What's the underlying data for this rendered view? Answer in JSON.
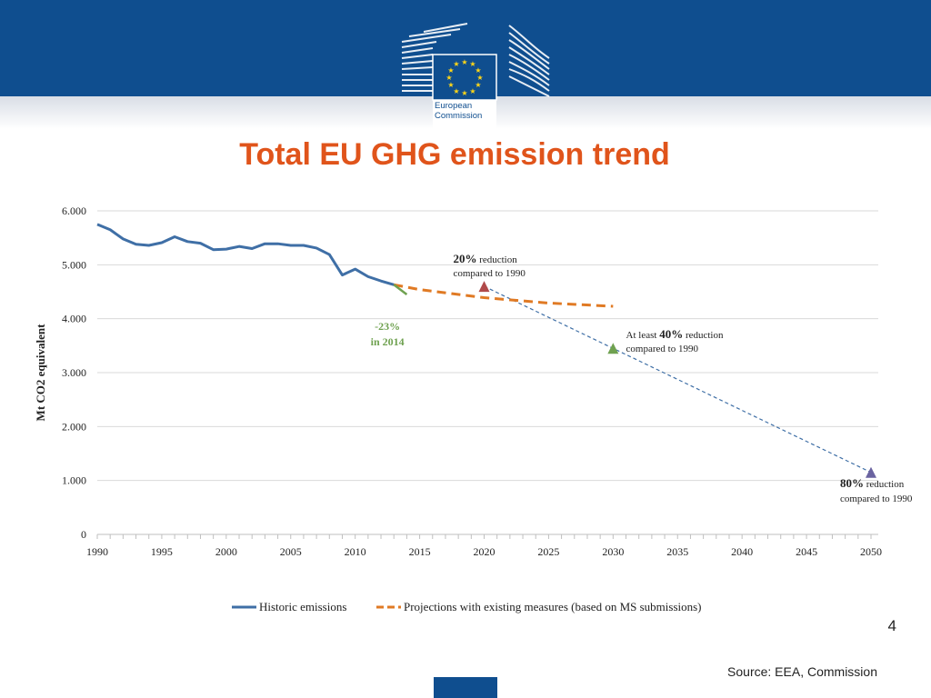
{
  "header": {
    "logo_line1": "European",
    "logo_line2": "Commission",
    "title": "Total EU GHG emission trend"
  },
  "footer": {
    "page_number": "4",
    "source": "Source: EEA, Commission"
  },
  "colors": {
    "banner": "#0f4e8f",
    "title": "#e0541b",
    "historic": "#3f6fa6",
    "projection": "#e07a24",
    "target_line": "#3f6fa6",
    "marker_2020": "#b04a4a",
    "marker_2030": "#6fa150",
    "marker_2050": "#6a63a0",
    "trend_2014": "#6fa150"
  },
  "chart_data": {
    "type": "line",
    "ylabel": "Mt CO2 equivalent",
    "ylim": [
      0,
      6000
    ],
    "xlim": [
      1990,
      2050
    ],
    "y_ticks": [
      {
        "value": 0,
        "label": "0"
      },
      {
        "value": 1000,
        "label": "1.000"
      },
      {
        "value": 2000,
        "label": "2.000"
      },
      {
        "value": 3000,
        "label": "3.000"
      },
      {
        "value": 4000,
        "label": "4.000"
      },
      {
        "value": 5000,
        "label": "5.000"
      },
      {
        "value": 6000,
        "label": "6.000"
      }
    ],
    "x_ticks": [
      1990,
      1995,
      2000,
      2005,
      2010,
      2015,
      2020,
      2025,
      2030,
      2035,
      2040,
      2045,
      2050
    ],
    "grid": true,
    "legend_position": "bottom",
    "series": [
      {
        "name": "Historic emissions",
        "style": "solid",
        "x": [
          1990,
          1991,
          1992,
          1993,
          1994,
          1995,
          1996,
          1997,
          1998,
          1999,
          2000,
          2001,
          2002,
          2003,
          2004,
          2005,
          2006,
          2007,
          2008,
          2009,
          2010,
          2011,
          2012,
          2013
        ],
        "y": [
          5750,
          5650,
          5480,
          5380,
          5360,
          5410,
          5520,
          5430,
          5400,
          5280,
          5290,
          5340,
          5300,
          5390,
          5390,
          5360,
          5360,
          5310,
          5190,
          4810,
          4920,
          4780,
          4700,
          4630
        ]
      },
      {
        "name": "Projections with existing measures (based on MS submissions)",
        "style": "dashed",
        "x": [
          2013,
          2015,
          2020,
          2025,
          2030
        ],
        "y": [
          4630,
          4540,
          4390,
          4290,
          4230
        ]
      }
    ],
    "trend_2014": {
      "x": [
        2013,
        2014
      ],
      "y": [
        4630,
        4450
      ],
      "label_line1": "-23%",
      "label_line2": "in 2014"
    },
    "target_path": {
      "x": [
        2020,
        2030,
        2050
      ],
      "y": [
        4600,
        3450,
        1150
      ]
    },
    "targets": [
      {
        "year": 2020,
        "value": 4600,
        "pct": "20%",
        "text": "reduction",
        "line2": "compared to 1990",
        "prefix": ""
      },
      {
        "year": 2030,
        "value": 3450,
        "pct": "40%",
        "text": "reduction",
        "line2": "compared to 1990",
        "prefix": "At least"
      },
      {
        "year": 2050,
        "value": 1150,
        "pct": "80%",
        "text": "reduction",
        "line2": "compared to 1990",
        "prefix": ""
      }
    ]
  }
}
